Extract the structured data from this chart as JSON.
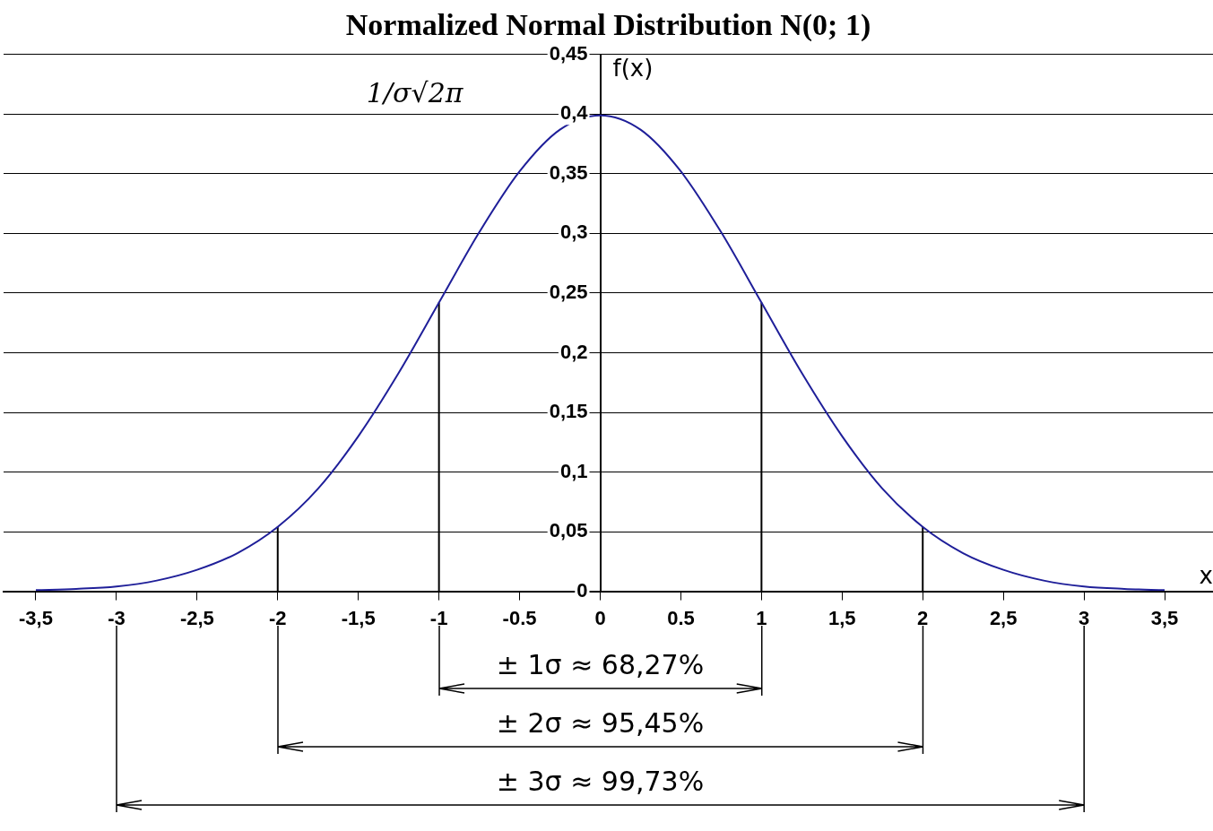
{
  "chart_data": {
    "type": "line",
    "title": "Normalized Normal Distribution N(0; 1)",
    "xlabel": "x",
    "ylabel": "f(x)",
    "xlim": [
      -3.7,
      3.8
    ],
    "ylim": [
      0,
      0.45
    ],
    "xticks": [
      {
        "value": -3.5,
        "label": "-3,5"
      },
      -3,
      {
        "value": -2.5,
        "label": "-2,5"
      },
      -2,
      {
        "value": -1.5,
        "label": "-1,5"
      },
      -1,
      {
        "value": -0.5,
        "label": "-0.5"
      },
      0,
      {
        "value": 0.5,
        "label": "0.5"
      },
      1,
      {
        "value": 1.5,
        "label": "1,5"
      },
      2,
      {
        "value": 2.5,
        "label": "2,5"
      },
      3,
      {
        "value": 3.5,
        "label": "3,5"
      }
    ],
    "yticks": [
      0,
      {
        "value": 0.05,
        "label": "0,05"
      },
      {
        "value": 0.1,
        "label": "0,1"
      },
      {
        "value": 0.15,
        "label": "0,15"
      },
      {
        "value": 0.2,
        "label": "0,2"
      },
      {
        "value": 0.25,
        "label": "0,25"
      },
      {
        "value": 0.3,
        "label": "0,3"
      },
      {
        "value": 0.35,
        "label": "0,35"
      },
      {
        "value": 0.4,
        "label": "0,4"
      },
      {
        "value": 0.45,
        "label": "0,45"
      }
    ],
    "grid": "y",
    "series": [
      {
        "color": "#1f1f99",
        "x": [
          -3.5,
          -3.25,
          -3,
          -2.75,
          -2.5,
          -2.25,
          -2,
          -1.75,
          -1.5,
          -1.25,
          -1,
          -0.75,
          -0.5,
          -0.25,
          0,
          0.25,
          0.5,
          0.75,
          1,
          1.25,
          1.5,
          1.75,
          2,
          2.25,
          2.5,
          2.75,
          3,
          3.25,
          3.5
        ],
        "values": [
          0.001,
          0.002,
          0.004,
          0.009,
          0.018,
          0.032,
          0.054,
          0.086,
          0.13,
          0.183,
          0.242,
          0.301,
          0.352,
          0.387,
          0.399,
          0.387,
          0.352,
          0.301,
          0.242,
          0.183,
          0.13,
          0.086,
          0.054,
          0.032,
          0.018,
          0.009,
          0.004,
          0.002,
          0.001
        ]
      },
      {
        "color": "#000000",
        "x": [
          -2,
          -2
        ],
        "values": [
          0,
          0.054
        ]
      },
      {
        "color": "#000000",
        "x": [
          -1,
          -1
        ],
        "values": [
          0,
          0.242
        ]
      },
      {
        "color": "#000000",
        "x": [
          1,
          1
        ],
        "values": [
          0,
          0.242
        ]
      },
      {
        "color": "#000000",
        "x": [
          2,
          2
        ],
        "values": [
          0,
          0.054
        ]
      }
    ],
    "annotations": [
      "1/σ√2π",
      "± 1σ ≈ 68,27%",
      "± 2σ ≈ 95,45%",
      "± 3σ ≈ 99,73%"
    ],
    "legend": false
  }
}
